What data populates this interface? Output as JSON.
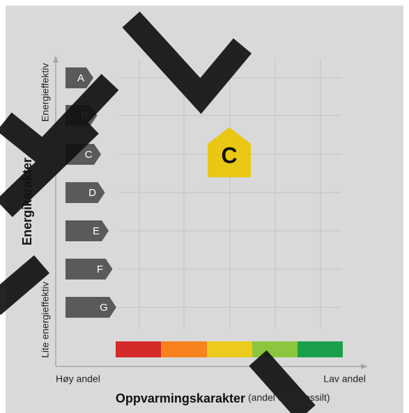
{
  "axis": {
    "y_top": "Energieffektiv",
    "y_title": "Energikarakter",
    "y_bottom": "Lite energieffektiv",
    "x_left": "Høy andel",
    "x_right": "Lav andel",
    "x_title": "Oppvarmingskarakter",
    "x_subtitle": "(andel el og fossilt)"
  },
  "grades": [
    "A",
    "B",
    "C",
    "D",
    "E",
    "F",
    "G"
  ],
  "badge": {
    "label": "C"
  }
}
